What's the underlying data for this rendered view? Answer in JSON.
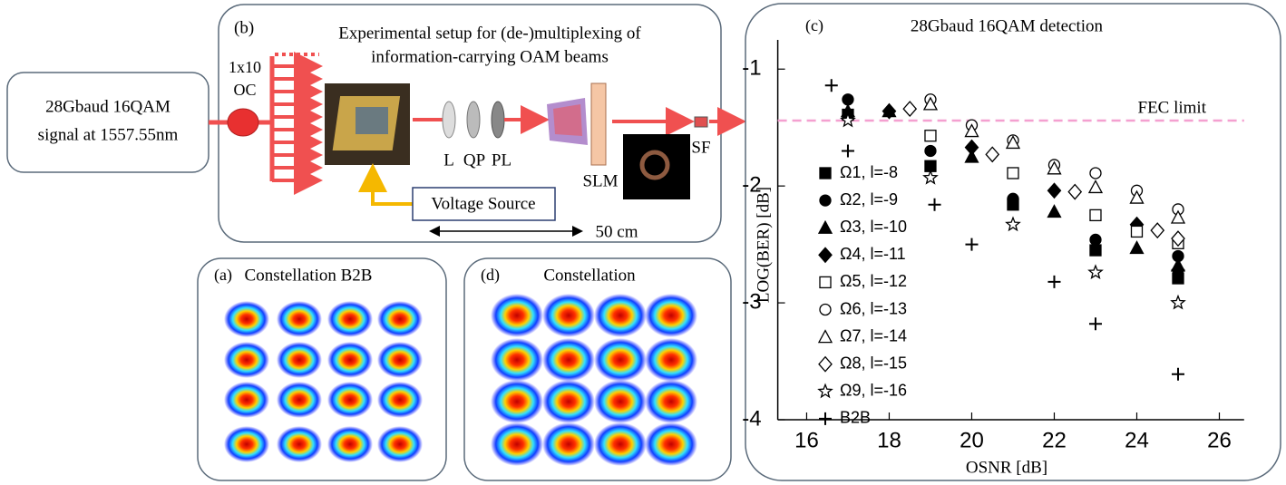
{
  "diagram": {
    "signal_box": {
      "label_lines": [
        "28Gbaud 16QAM",
        "signal at 1557.55nm"
      ]
    },
    "panel_b": {
      "tag": "(b)",
      "title_lines": [
        "Experimental setup for (de-)multiplexing of",
        "information-carrying OAM beams"
      ],
      "splitter_lines": [
        "1x10",
        "OC"
      ],
      "lens_labels": [
        "L",
        "QP",
        "PL"
      ],
      "slm": "SLM",
      "sf": "SF",
      "voltage_source": "Voltage Source",
      "distance": "50 cm"
    },
    "panel_a": {
      "tag": "(a)",
      "title": "Constellation B2B"
    },
    "panel_d": {
      "tag": "(d)",
      "title": "Constellation"
    }
  },
  "chart_data": {
    "type": "scatter",
    "tag": "(c)",
    "title": "28Gbaud 16QAM detection",
    "x_label": "OSNR [dB]",
    "y_label": "LOG(BER) [dB]",
    "xlim": [
      15.3,
      26.6
    ],
    "ylim": [
      -4,
      -0.75
    ],
    "xticks": [
      16,
      18,
      20,
      22,
      24,
      26
    ],
    "yticks": [
      -4,
      -3,
      -2,
      -1
    ],
    "reference_line": {
      "label": "FEC limit",
      "value": -1.44,
      "color": "#f4a0d0"
    },
    "series": [
      {
        "name": "Ω1, l=-8",
        "marker": "square",
        "fill": true,
        "x": [
          17,
          19,
          21,
          23,
          25
        ],
        "values": [
          -1.39,
          -1.83,
          -2.16,
          -2.55,
          -2.79
        ]
      },
      {
        "name": "Ω2, l=-9",
        "marker": "circle",
        "fill": true,
        "x": [
          17,
          19,
          21,
          23,
          25
        ],
        "values": [
          -1.26,
          -1.7,
          -2.11,
          -2.46,
          -2.6
        ]
      },
      {
        "name": "Ω3, l=-10",
        "marker": "triangle",
        "fill": true,
        "x": [
          17,
          18,
          20,
          22,
          24,
          25
        ],
        "values": [
          -1.36,
          -1.36,
          -1.75,
          -2.22,
          -2.53,
          -2.68
        ]
      },
      {
        "name": "Ω4, l=-11",
        "marker": "diamond",
        "fill": true,
        "x": [
          18,
          20,
          22,
          24,
          25
        ],
        "values": [
          -1.36,
          -1.67,
          -2.04,
          -2.33,
          -2.72
        ]
      },
      {
        "name": "Ω5, l=-12",
        "marker": "square",
        "fill": false,
        "x": [
          19,
          21,
          23,
          24,
          25
        ],
        "values": [
          -1.57,
          -1.89,
          -2.25,
          -2.39,
          -2.49
        ]
      },
      {
        "name": "Ω6, l=-13",
        "marker": "circle",
        "fill": false,
        "x": [
          19,
          20,
          21,
          22,
          23,
          24,
          25
        ],
        "values": [
          -1.26,
          -1.48,
          -1.61,
          -1.82,
          -1.89,
          -2.04,
          -2.2
        ]
      },
      {
        "name": "Ω7, l=-14",
        "marker": "triangle",
        "fill": false,
        "x": [
          19,
          20,
          21,
          22,
          23,
          24,
          25
        ],
        "values": [
          -1.3,
          -1.53,
          -1.63,
          -1.85,
          -2.01,
          -2.1,
          -2.27
        ]
      },
      {
        "name": "Ω8, l=-15",
        "marker": "diamond",
        "fill": false,
        "x": [
          18.5,
          20.5,
          22.5,
          24.5,
          25
        ],
        "values": [
          -1.34,
          -1.73,
          -2.05,
          -2.38,
          -2.45
        ]
      },
      {
        "name": "Ω9, l=-16",
        "marker": "star",
        "fill": false,
        "x": [
          17,
          19,
          21,
          23,
          25
        ],
        "values": [
          -1.44,
          -1.93,
          -2.33,
          -2.74,
          -3.0
        ]
      },
      {
        "name": "B2B",
        "marker": "plus",
        "fill": false,
        "x": [
          16.6,
          17,
          19.1,
          20,
          22,
          23,
          25
        ],
        "values": [
          -1.14,
          -1.7,
          -2.16,
          -2.5,
          -2.82,
          -3.18,
          -3.61
        ]
      }
    ]
  }
}
